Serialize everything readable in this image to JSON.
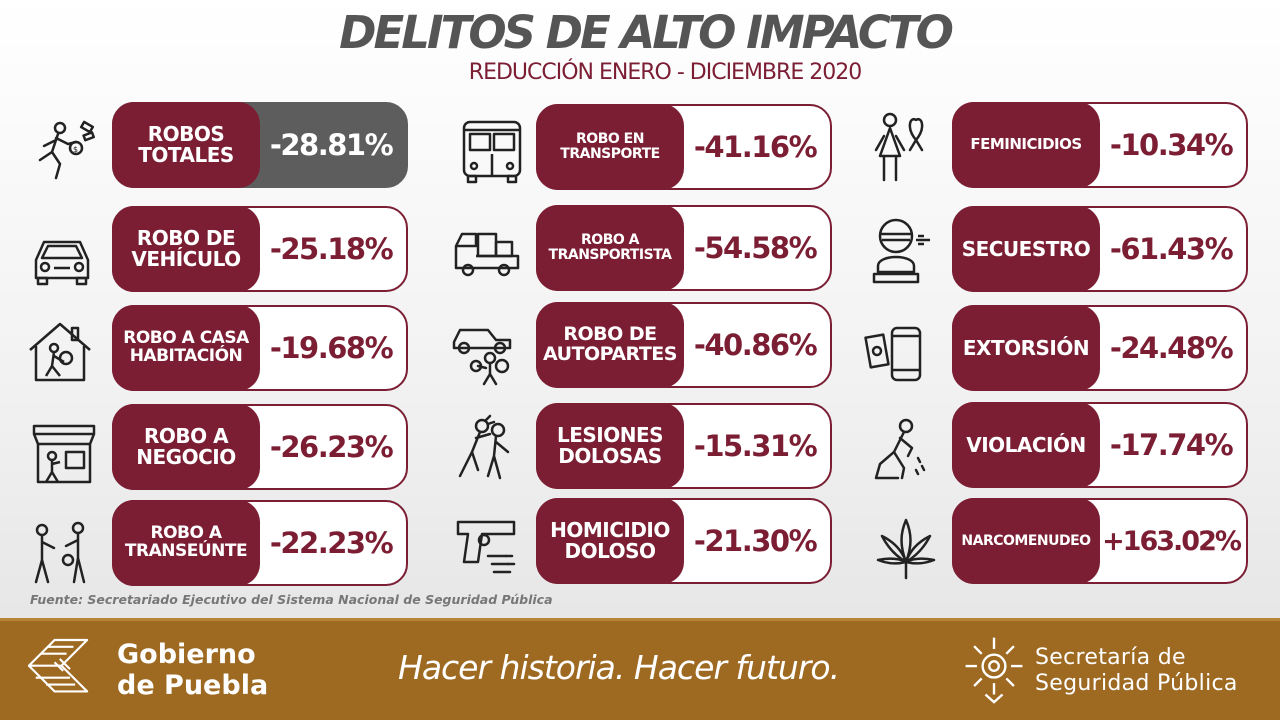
{
  "header": {
    "title": "DELITOS DE ALTO IMPACTO",
    "subtitle": "REDUCCIÓN ENERO - DICIEMBRE 2020"
  },
  "colors": {
    "accent": "#7b1e34",
    "highlight": "#5d5d5d",
    "footer": "#9e6a22"
  },
  "crimes": [
    {
      "label": "ROBOS TOTALES",
      "value": "-28.81%",
      "icon": "thief-running-icon"
    },
    {
      "label": "ROBO DE VEHÍCULO",
      "value": "-25.18%",
      "icon": "car-icon"
    },
    {
      "label": "ROBO A CASA HABITACIÓN",
      "value": "-19.68%",
      "icon": "house-burglar-icon"
    },
    {
      "label": "ROBO A NEGOCIO",
      "value": "-26.23%",
      "icon": "store-icon"
    },
    {
      "label": "ROBO A TRANSEÚNTE",
      "value": "-22.23%",
      "icon": "pedestrian-robbery-icon"
    },
    {
      "label": "ROBO EN TRANSPORTE",
      "value": "-41.16%",
      "icon": "bus-icon"
    },
    {
      "label": "ROBO A TRANSPORTISTA",
      "value": "-54.58%",
      "icon": "truck-icon"
    },
    {
      "label": "ROBO DE AUTOPARTES",
      "value": "-40.86%",
      "icon": "auto-parts-thief-icon"
    },
    {
      "label": "LESIONES DOLOSAS",
      "value": "-15.31%",
      "icon": "assault-icon"
    },
    {
      "label": "HOMICIDIO DOLOSO",
      "value": "-21.30%",
      "icon": "gun-icon"
    },
    {
      "label": "FEMINICIDIOS",
      "value": "-10.34%",
      "icon": "woman-ribbon-icon"
    },
    {
      "label": "SECUESTRO",
      "value": "-61.43%",
      "icon": "kidnap-victim-icon"
    },
    {
      "label": "EXTORSIÓN",
      "value": "-24.48%",
      "icon": "phone-money-icon"
    },
    {
      "label": "VIOLACIÓN",
      "value": "-17.74%",
      "icon": "kneeling-victim-icon"
    },
    {
      "label": "NARCOMENUDEO",
      "value": "+163.02%",
      "icon": "cannabis-leaf-icon"
    }
  ],
  "source": "Fuente: Secretariado Ejecutivo del Sistema Nacional de Seguridad Pública",
  "footer": {
    "gov_line1": "Gobierno",
    "gov_line2": "de Puebla",
    "slogan": "Hacer historia. Hacer futuro.",
    "ssp_line1": "Secretaría de",
    "ssp_line2": "Seguridad Pública"
  }
}
